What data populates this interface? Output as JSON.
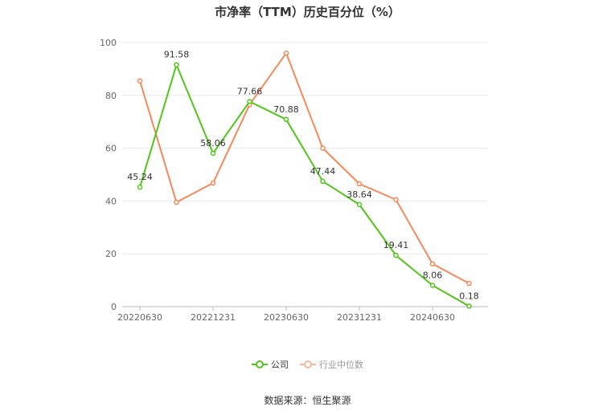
{
  "chart_data": {
    "type": "line",
    "title": "市净率（TTM）历史百分位（%）",
    "x": [
      "20220630",
      "20220930",
      "20221231",
      "20230331",
      "20230630",
      "20230930",
      "20231231",
      "20240331",
      "20240630",
      "20240930"
    ],
    "x_tick_labels": [
      "20220630",
      "",
      "20221231",
      "",
      "20230630",
      "",
      "20231231",
      "",
      "20240630",
      ""
    ],
    "ylim": [
      0,
      100
    ],
    "y_ticks": [
      0,
      20,
      40,
      60,
      80,
      100
    ],
    "grid": true,
    "legend_position": "bottom-center",
    "series": [
      {
        "name": "公司",
        "color": "#52c41a",
        "values": [
          45.24,
          91.58,
          58.06,
          77.66,
          70.88,
          47.44,
          38.64,
          19.41,
          8.06,
          0.18
        ],
        "data_labels": [
          "45.24",
          "91.58",
          "58.06",
          "77.66",
          "70.88",
          "47.44",
          "38.64",
          "19.41",
          "8.06",
          "0.18"
        ]
      },
      {
        "name": "行业中位数",
        "color": "#f5895a",
        "values": [
          85.5,
          39.5,
          46.8,
          76.5,
          96.0,
          60.0,
          46.5,
          40.5,
          16.2,
          8.8
        ]
      }
    ]
  },
  "footer": {
    "source": "数据来源：恒生聚源"
  }
}
